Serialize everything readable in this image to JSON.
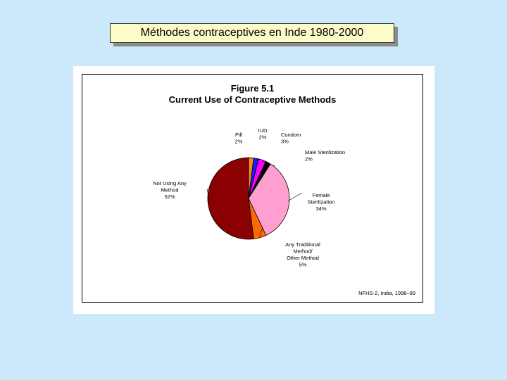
{
  "slide": {
    "title": "Méthodes contraceptives en Inde 1980-2000"
  },
  "figure": {
    "number": "Figure 5.1",
    "title": "Current Use of Contraceptive Methods",
    "source": "NFHS-2, India, 1998–99"
  },
  "chart_data": {
    "type": "pie",
    "title": "Current Use of Contraceptive Methods",
    "slices": [
      {
        "label": [
          "Pill"
        ],
        "pct": "2%",
        "value": 2,
        "color": "#ff8c1a"
      },
      {
        "label": [
          "IUD"
        ],
        "pct": "2%",
        "value": 2,
        "color": "#1a1aff"
      },
      {
        "label": [
          "Condom"
        ],
        "pct": "3%",
        "value": 3,
        "color": "#ff00ff"
      },
      {
        "label": [
          "Male Sterilization"
        ],
        "pct": "2%",
        "value": 2,
        "color": "#000000"
      },
      {
        "label": [
          "Female",
          "Sterilization"
        ],
        "pct": "34%",
        "value": 34,
        "color": "#ff9fcf"
      },
      {
        "label": [
          "Any Traditional",
          "Method/",
          "Other Method"
        ],
        "pct": "5%",
        "value": 5,
        "color": "#ff6a00"
      },
      {
        "label": [
          "Not Using Any",
          "Method"
        ],
        "pct": "52%",
        "value": 52,
        "color": "#8b0000"
      }
    ]
  }
}
